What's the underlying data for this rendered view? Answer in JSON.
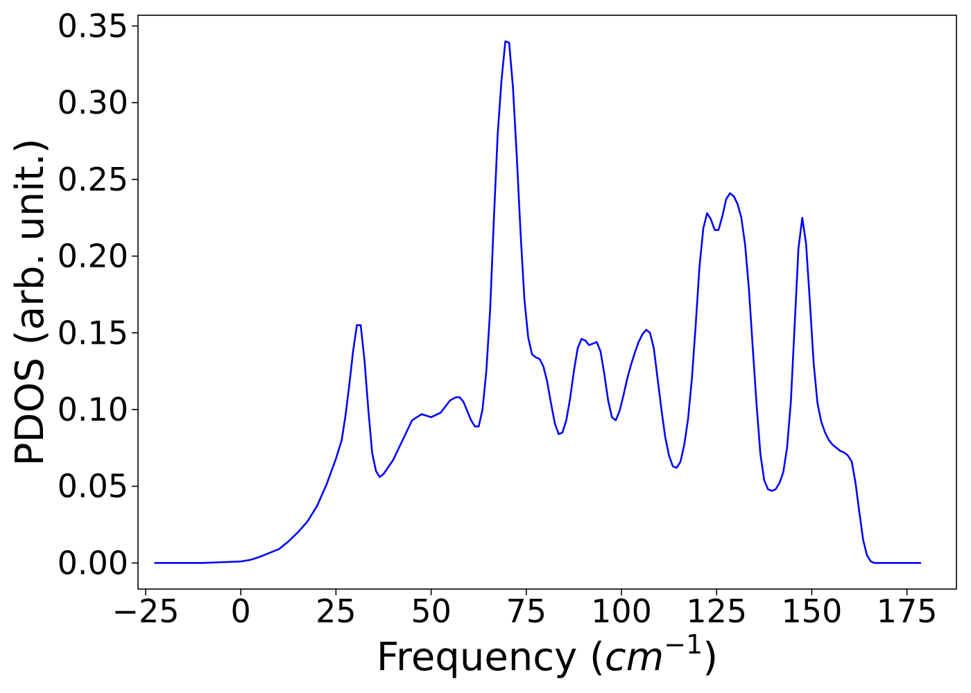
{
  "chart_data": {
    "type": "line",
    "title": "",
    "xlabel": {
      "prefix": "Frequency (",
      "math": "cm",
      "superscript": "−1",
      "suffix": ")"
    },
    "ylabel": "PDOS (arb. unit.)",
    "xlim": [
      -27,
      188
    ],
    "ylim": [
      -0.017,
      0.357
    ],
    "xticks": [
      -25,
      0,
      25,
      50,
      75,
      100,
      125,
      150,
      175
    ],
    "xtick_labels": [
      "−25",
      "0",
      "25",
      "50",
      "75",
      "100",
      "125",
      "150",
      "175"
    ],
    "yticks": [
      0.0,
      0.05,
      0.1,
      0.15,
      0.2,
      0.25,
      0.3,
      0.35
    ],
    "ytick_labels": [
      "0.00",
      "0.05",
      "0.10",
      "0.15",
      "0.20",
      "0.25",
      "0.30",
      "0.35"
    ],
    "grid": false,
    "legend": "none",
    "line_color": "#0000ff",
    "series": [
      {
        "x": [
          -22.5,
          -10,
          -5,
          0,
          2.5,
          5,
          7.5,
          10,
          12.5,
          15,
          17.5,
          20,
          22.5,
          25,
          26.5,
          27.5,
          28.5,
          29.5,
          30.5,
          31.5,
          32.5,
          33.5,
          34.5,
          35.5,
          36.5,
          37.5,
          40,
          42.5,
          45,
          47.5,
          50,
          52.5,
          55,
          56.5,
          57.5,
          58.5,
          59.5,
          60.5,
          61.5,
          62.5,
          63.5,
          64.5,
          65.5,
          66.5,
          67.5,
          68.5,
          69.5,
          70.5,
          71.5,
          72.5,
          73.5,
          74.5,
          75.5,
          76.5,
          77.5,
          78.5,
          79.5,
          80.5,
          81.5,
          82.5,
          83.5,
          84.5,
          85.5,
          86.5,
          87.5,
          88.5,
          89.5,
          90.5,
          91.5,
          92.5,
          93.5,
          94.5,
          95.5,
          96.5,
          97.5,
          98.5,
          99.5,
          100.5,
          101.5,
          102.5,
          103.5,
          104.5,
          105.5,
          106.5,
          107.5,
          108.5,
          109.5,
          110.5,
          111.5,
          112.5,
          113.5,
          114.5,
          115.5,
          116.5,
          117.5,
          118.5,
          119.5,
          120.5,
          121.5,
          122.5,
          123.5,
          124.5,
          125.5,
          126.5,
          127.5,
          128.5,
          129.5,
          130.5,
          131.5,
          132.5,
          133.5,
          134.5,
          135.5,
          136.5,
          137.5,
          138.5,
          139.5,
          140.5,
          141.5,
          142.5,
          143.5,
          144.5,
          145.5,
          146.5,
          147.5,
          148.5,
          149.5,
          150.5,
          151.5,
          152.5,
          153.5,
          154.5,
          155.5,
          156.5,
          157.5,
          158.5,
          159.5,
          160.5,
          161.5,
          162.5,
          163.5,
          164.5,
          165.5,
          166.5,
          168,
          170,
          175,
          178.5
        ],
        "y": [
          0.0,
          0.0,
          0.0005,
          0.001,
          0.002,
          0.004,
          0.0065,
          0.009,
          0.014,
          0.02,
          0.027,
          0.037,
          0.051,
          0.068,
          0.08,
          0.096,
          0.116,
          0.138,
          0.155,
          0.155,
          0.132,
          0.1,
          0.072,
          0.06,
          0.056,
          0.058,
          0.067,
          0.08,
          0.093,
          0.097,
          0.095,
          0.098,
          0.106,
          0.108,
          0.108,
          0.105,
          0.099,
          0.093,
          0.089,
          0.089,
          0.1,
          0.125,
          0.165,
          0.225,
          0.28,
          0.315,
          0.34,
          0.339,
          0.31,
          0.265,
          0.215,
          0.172,
          0.147,
          0.136,
          0.134,
          0.133,
          0.128,
          0.118,
          0.104,
          0.091,
          0.084,
          0.085,
          0.093,
          0.107,
          0.125,
          0.14,
          0.146,
          0.145,
          0.142,
          0.143,
          0.144,
          0.138,
          0.123,
          0.106,
          0.095,
          0.093,
          0.099,
          0.109,
          0.12,
          0.129,
          0.137,
          0.144,
          0.149,
          0.152,
          0.15,
          0.14,
          0.12,
          0.1,
          0.082,
          0.07,
          0.063,
          0.062,
          0.066,
          0.077,
          0.094,
          0.12,
          0.155,
          0.193,
          0.218,
          0.228,
          0.224,
          0.217,
          0.217,
          0.226,
          0.237,
          0.241,
          0.239,
          0.234,
          0.225,
          0.207,
          0.178,
          0.14,
          0.103,
          0.071,
          0.054,
          0.048,
          0.047,
          0.048,
          0.052,
          0.059,
          0.075,
          0.105,
          0.155,
          0.205,
          0.225,
          0.208,
          0.17,
          0.13,
          0.104,
          0.092,
          0.085,
          0.08,
          0.077,
          0.075,
          0.073,
          0.072,
          0.07,
          0.066,
          0.052,
          0.033,
          0.015,
          0.005,
          0.001,
          0.0,
          0.0,
          0.0,
          0.0,
          0.0
        ]
      }
    ]
  }
}
